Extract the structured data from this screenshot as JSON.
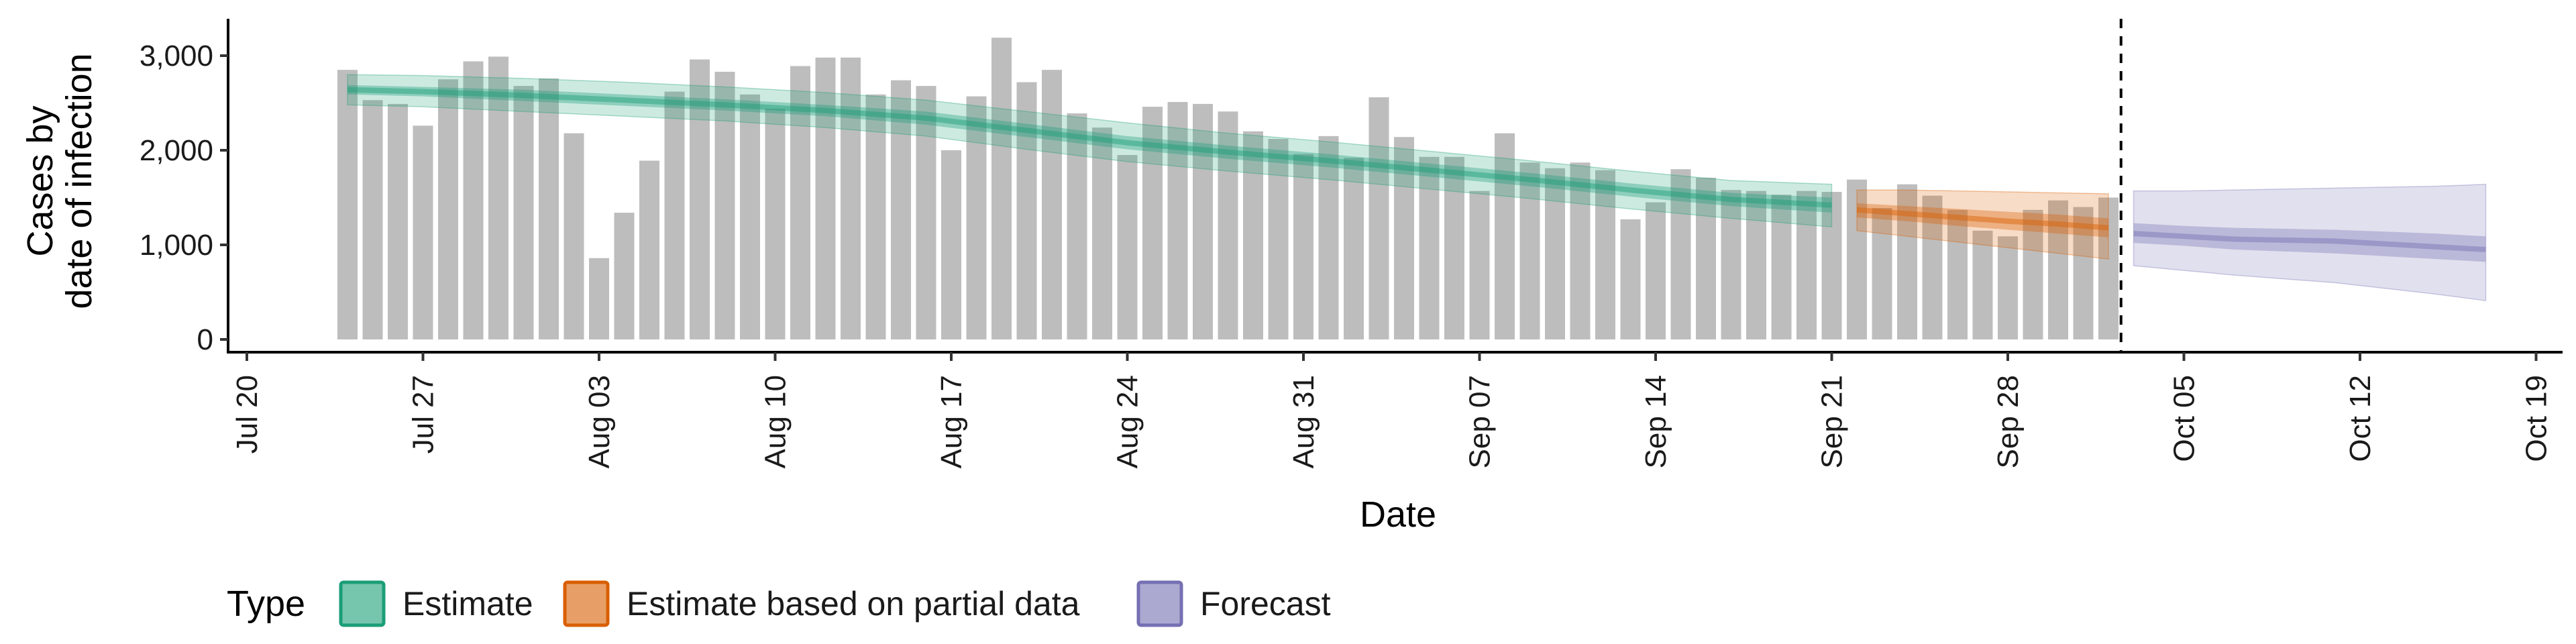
{
  "chart_data": {
    "type": "bar",
    "title": "",
    "xlabel": "Date",
    "ylabel_lines": [
      "Cases by",
      "date of infection"
    ],
    "ylim": [
      0,
      3350
    ],
    "yticks": [
      0,
      1000,
      2000,
      3000
    ],
    "ytick_labels": [
      "0",
      "1,000",
      "2,000",
      "3,000"
    ],
    "xlim": [
      "2020-07-19",
      "2020-10-20"
    ],
    "xticks": [
      {
        "date": "2020-07-20",
        "label": "Jul 20"
      },
      {
        "date": "2020-07-27",
        "label": "Jul 27"
      },
      {
        "date": "2020-08-03",
        "label": "Aug 03"
      },
      {
        "date": "2020-08-10",
        "label": "Aug 10"
      },
      {
        "date": "2020-08-17",
        "label": "Aug 17"
      },
      {
        "date": "2020-08-24",
        "label": "Aug 24"
      },
      {
        "date": "2020-08-31",
        "label": "Aug 31"
      },
      {
        "date": "2020-09-07",
        "label": "Sep 07"
      },
      {
        "date": "2020-09-14",
        "label": "Sep 14"
      },
      {
        "date": "2020-09-21",
        "label": "Sep 21"
      },
      {
        "date": "2020-09-28",
        "label": "Sep 28"
      },
      {
        "date": "2020-10-05",
        "label": "Oct 05"
      },
      {
        "date": "2020-10-12",
        "label": "Oct 12"
      },
      {
        "date": "2020-10-19",
        "label": "Oct 19"
      }
    ],
    "grid": false,
    "bars": {
      "color": "#bdbdbd",
      "dates": [
        "2020-07-24",
        "2020-07-25",
        "2020-07-26",
        "2020-07-27",
        "2020-07-28",
        "2020-07-29",
        "2020-07-30",
        "2020-07-31",
        "2020-08-01",
        "2020-08-02",
        "2020-08-03",
        "2020-08-04",
        "2020-08-05",
        "2020-08-06",
        "2020-08-07",
        "2020-08-08",
        "2020-08-09",
        "2020-08-10",
        "2020-08-11",
        "2020-08-12",
        "2020-08-13",
        "2020-08-14",
        "2020-08-15",
        "2020-08-16",
        "2020-08-17",
        "2020-08-18",
        "2020-08-19",
        "2020-08-20",
        "2020-08-21",
        "2020-08-22",
        "2020-08-23",
        "2020-08-24",
        "2020-08-25",
        "2020-08-26",
        "2020-08-27",
        "2020-08-28",
        "2020-08-29",
        "2020-08-30",
        "2020-08-31",
        "2020-09-01",
        "2020-09-02",
        "2020-09-03",
        "2020-09-04",
        "2020-09-05",
        "2020-09-06",
        "2020-09-07",
        "2020-09-08",
        "2020-09-09",
        "2020-09-10",
        "2020-09-11",
        "2020-09-12",
        "2020-09-13",
        "2020-09-14",
        "2020-09-15",
        "2020-09-16",
        "2020-09-17",
        "2020-09-18",
        "2020-09-19",
        "2020-09-20",
        "2020-09-21",
        "2020-09-22",
        "2020-09-23",
        "2020-09-24",
        "2020-09-25",
        "2020-09-26",
        "2020-09-27",
        "2020-09-28",
        "2020-09-29",
        "2020-09-30",
        "2020-10-01",
        "2020-10-02"
      ],
      "values": [
        2850,
        2530,
        2490,
        2260,
        2750,
        2940,
        2990,
        2680,
        2760,
        2180,
        860,
        1340,
        1890,
        2620,
        2960,
        2830,
        2590,
        2440,
        2890,
        2980,
        2980,
        2590,
        2740,
        2680,
        2000,
        2570,
        3190,
        2720,
        2850,
        2390,
        2240,
        1950,
        2460,
        2510,
        2490,
        2410,
        2200,
        2120,
        1960,
        2150,
        1920,
        2560,
        2140,
        1930,
        1930,
        1570,
        2180,
        1870,
        1810,
        1870,
        1790,
        1270,
        1450,
        1800,
        1710,
        1580,
        1570,
        1530,
        1570,
        1560,
        1690,
        1390,
        1640,
        1520,
        1370,
        1150,
        1090,
        1370,
        1470,
        1400,
        1500
      ]
    },
    "series": [
      {
        "name": "Estimate",
        "color": "#1b9e77",
        "dates": [
          "2020-07-24",
          "2020-07-27",
          "2020-07-31",
          "2020-08-04",
          "2020-08-08",
          "2020-08-12",
          "2020-08-16",
          "2020-08-20",
          "2020-08-24",
          "2020-08-28",
          "2020-09-01",
          "2020-09-05",
          "2020-09-09",
          "2020-09-13",
          "2020-09-17",
          "2020-09-21"
        ],
        "median": [
          2640,
          2620,
          2580,
          2530,
          2480,
          2420,
          2340,
          2210,
          2080,
          1980,
          1890,
          1790,
          1690,
          1580,
          1480,
          1420
        ],
        "lower_50": [
          2590,
          2570,
          2520,
          2470,
          2420,
          2360,
          2270,
          2140,
          2010,
          1910,
          1820,
          1720,
          1620,
          1510,
          1410,
          1340
        ],
        "upper_50": [
          2690,
          2670,
          2640,
          2590,
          2540,
          2480,
          2410,
          2280,
          2150,
          2050,
          1960,
          1860,
          1760,
          1650,
          1550,
          1500
        ],
        "lower_90": [
          2480,
          2460,
          2410,
          2360,
          2310,
          2240,
          2150,
          2010,
          1880,
          1780,
          1690,
          1590,
          1490,
          1380,
          1280,
          1190
        ],
        "upper_90": [
          2800,
          2790,
          2760,
          2720,
          2670,
          2610,
          2530,
          2410,
          2290,
          2180,
          2090,
          1990,
          1890,
          1780,
          1680,
          1640
        ]
      },
      {
        "name": "Estimate based on partial data",
        "color": "#d95f02",
        "dates": [
          "2020-09-22",
          "2020-09-24",
          "2020-09-26",
          "2020-09-28",
          "2020-09-30",
          "2020-10-02"
        ],
        "median": [
          1370,
          1330,
          1290,
          1250,
          1220,
          1180
        ],
        "lower_50": [
          1290,
          1250,
          1200,
          1160,
          1120,
          1080
        ],
        "upper_50": [
          1440,
          1410,
          1380,
          1350,
          1320,
          1280
        ],
        "lower_90": [
          1150,
          1090,
          1030,
          970,
          910,
          850
        ],
        "upper_90": [
          1580,
          1580,
          1570,
          1560,
          1550,
          1540
        ]
      },
      {
        "name": "Forecast",
        "color": "#7570b3",
        "dates": [
          "2020-10-03",
          "2020-10-05",
          "2020-10-07",
          "2020-10-09",
          "2020-10-11",
          "2020-10-13",
          "2020-10-15",
          "2020-10-17"
        ],
        "median": [
          1120,
          1090,
          1060,
          1050,
          1040,
          1010,
          980,
          950
        ],
        "lower_50": [
          1020,
          990,
          950,
          930,
          910,
          880,
          850,
          820
        ],
        "upper_50": [
          1230,
          1200,
          1180,
          1170,
          1160,
          1140,
          1120,
          1090
        ],
        "lower_90": [
          780,
          730,
          680,
          640,
          600,
          540,
          480,
          410
        ],
        "upper_90": [
          1570,
          1570,
          1580,
          1590,
          1600,
          1610,
          1620,
          1640
        ]
      }
    ],
    "vline": {
      "date": "2020-10-02.5",
      "style": "dashed"
    },
    "legend": {
      "title": "Type",
      "placement": "bottom",
      "entries": [
        {
          "label": "Estimate",
          "color": "#1b9e77"
        },
        {
          "label": "Estimate based on partial data",
          "color": "#d95f02"
        },
        {
          "label": "Forecast",
          "color": "#7570b3"
        }
      ]
    }
  }
}
